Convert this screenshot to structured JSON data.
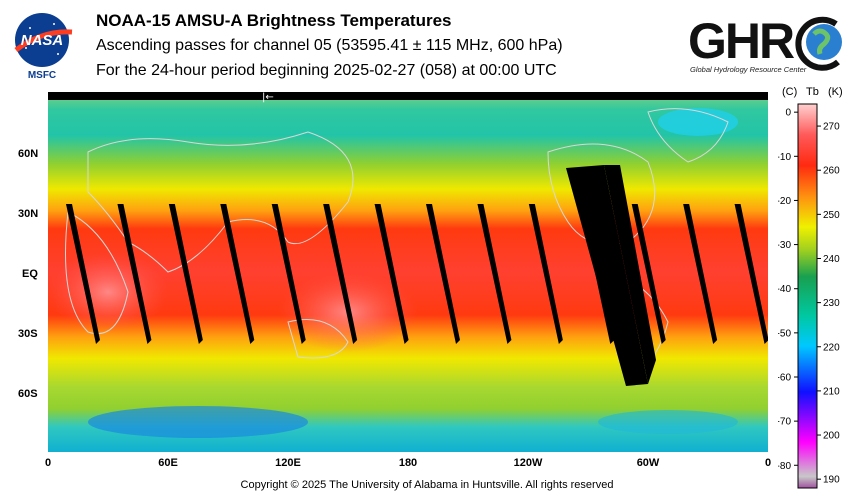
{
  "header": {
    "title": "NOAA-15 AMSU-A Brightness Temperatures",
    "subtitle": "Ascending passes for channel 05 (53595.41 ± 115 MHz, 600 hPa)",
    "period": "For the 24-hour period beginning 2025-02-27 (058) at 00:00 UTC"
  },
  "logos": {
    "left": {
      "text": "NASA",
      "caption": "MSFC"
    },
    "right": {
      "text": "GHRC",
      "caption": "Global Hydrology Resource Center"
    }
  },
  "map": {
    "lat_labels": [
      "60N",
      "30N",
      "EQ",
      "30S",
      "60S"
    ],
    "lon_labels": [
      "0",
      "60E",
      "120E",
      "180",
      "120W",
      "60W",
      "0"
    ],
    "swath_count": 14
  },
  "colorbar": {
    "unit_c": "(C)",
    "unit_tb": "Tb",
    "unit_k": "(K)",
    "celsius_ticks": [
      "0",
      "-10",
      "-20",
      "-30",
      "-40",
      "-50",
      "-60",
      "-70",
      "-80"
    ],
    "kelvin_ticks": [
      "270",
      "260",
      "250",
      "240",
      "230",
      "220",
      "210",
      "200",
      "190"
    ],
    "range_k": [
      188,
      275
    ],
    "colors": [
      "#a0529f",
      "#c8c8c8",
      "#ff00ff",
      "#1010ff",
      "#00c8ff",
      "#00c8a0",
      "#18a050",
      "#a0d020",
      "#f0f000",
      "#ff9010",
      "#ff2a10",
      "#ff5a5a",
      "#ffd0d0"
    ]
  },
  "footer": {
    "copyright": "Copyright © 2025 The University of Alabama in Huntsville.  All rights reserved"
  }
}
